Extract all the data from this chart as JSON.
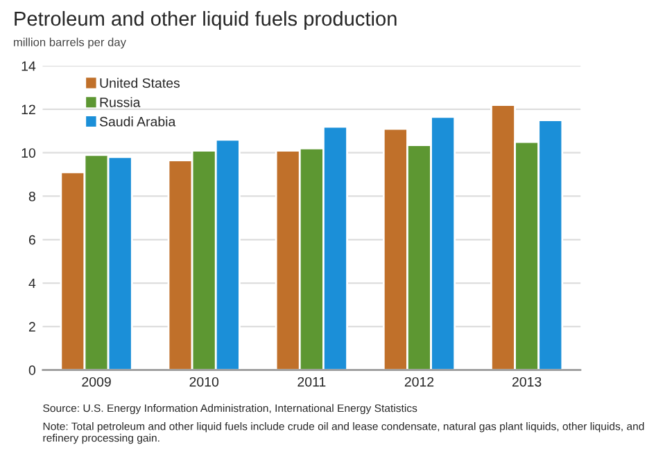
{
  "chart_data": {
    "type": "bar",
    "title": "Petroleum and other liquid fuels production",
    "subtitle": "million barrels per day",
    "categories": [
      "2009",
      "2010",
      "2011",
      "2012",
      "2013"
    ],
    "series": [
      {
        "name": "United States",
        "color": "#c0702a",
        "values": [
          9.1,
          9.65,
          10.1,
          11.1,
          12.2
        ]
      },
      {
        "name": "Russia",
        "color": "#5d9732",
        "values": [
          9.9,
          10.1,
          10.2,
          10.35,
          10.5
        ]
      },
      {
        "name": "Saudi Arabia",
        "color": "#1b8fd8",
        "values": [
          9.8,
          10.6,
          11.2,
          11.65,
          11.5
        ]
      }
    ],
    "ylim": [
      0,
      14
    ],
    "yticks": [
      0,
      2,
      4,
      6,
      8,
      10,
      12,
      14
    ],
    "grid": "y",
    "legend": "top left",
    "annotations": [
      "Source: U.S. Energy Information Administration, International Energy Statistics",
      "Note: Total petroleum and other liquid fuels include crude oil and lease condensate, natural gas plant liquids, other liquids, and refinery processing gain."
    ]
  }
}
